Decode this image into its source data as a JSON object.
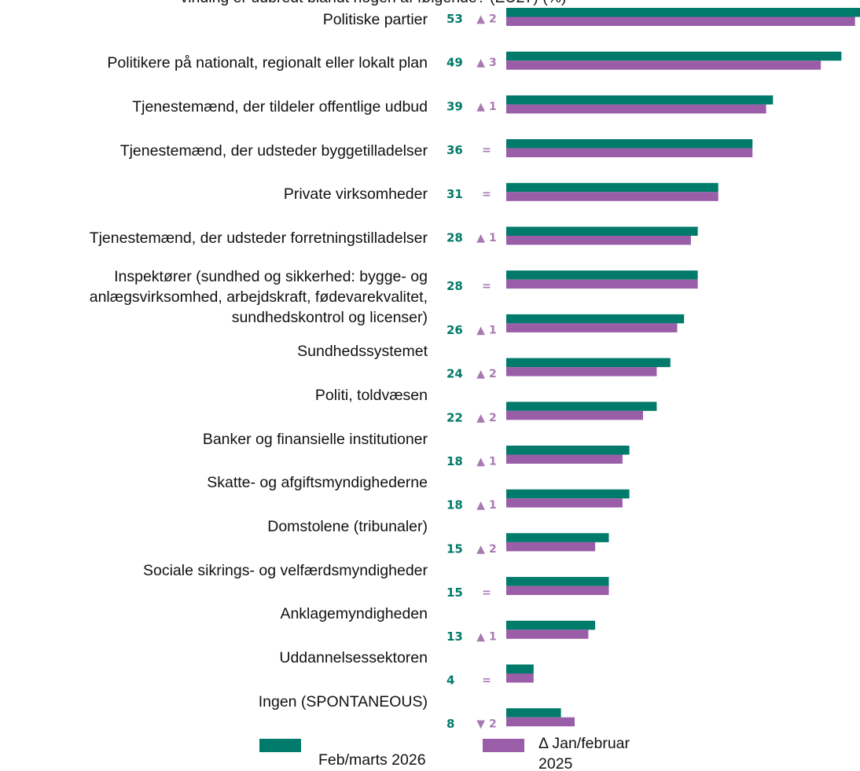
{
  "chart_data": {
    "type": "bar",
    "orientation": "horizontal",
    "title": "vinding er udbredt blandt nogen af følgende? (EU27) (%)",
    "categories": [
      "Politiske partier",
      "Politikere på nationalt, regionalt eller lokalt plan",
      "Tjenestemænd, der tildeler offentlige udbud",
      "Tjenestemænd, der udsteder byggetilladelser",
      "Private virksomheder",
      "Tjenestemænd, der udsteder forretningstilladelser",
      "Inspektører (sundhed og sikkerhed: bygge- og anlægsvirksomhed, arbejdskraft, fødevarekvalitet, sundhedskontrol og licenser)",
      null,
      "Sundhedssystemet",
      "Politi, toldvæsen",
      "Banker og finansielle institutioner",
      "Skatte- og afgiftsmyndighederne",
      "Domstolene (tribunaler)",
      "Sociale sikrings- og velfærdsmyndigheder",
      "Anklagemyndigheden",
      "Uddannelsessektoren",
      "Ingen (SPONTANEOUS)"
    ],
    "series": [
      {
        "name": "Feb/marts 2026",
        "color": "#007a6a",
        "values": [
          53,
          49,
          39,
          36,
          31,
          28,
          28,
          26,
          24,
          22,
          18,
          18,
          15,
          15,
          13,
          4,
          8
        ]
      },
      {
        "name": "Δ Jan/februar 2025",
        "color": "#9a5ea8",
        "values": [
          51,
          46,
          38,
          36,
          31,
          27,
          28,
          25,
          22,
          20,
          17,
          17,
          13,
          15,
          12,
          4,
          10
        ]
      }
    ],
    "changes": [
      "▲ 2",
      "▲ 3",
      "▲ 1",
      "=",
      "=",
      "▲ 1",
      "=",
      "▲ 1",
      "▲ 2",
      "▲ 2",
      "▲ 1",
      "▲ 1",
      "▲ 2",
      "=",
      "▲ 1",
      "=",
      "▼ 2"
    ]
  }
}
